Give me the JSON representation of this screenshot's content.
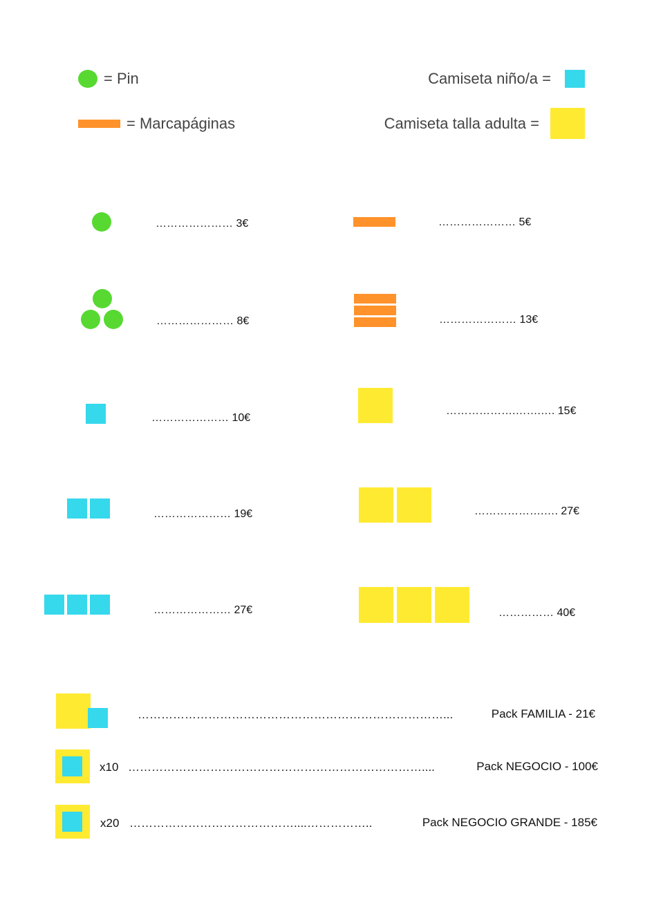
{
  "colors": {
    "pin": "#57d932",
    "bookmark": "#ff922b",
    "kid_shirt": "#36d8ec",
    "adult_shirt": "#ffea32"
  },
  "legend": {
    "pin": "=  Pin",
    "bookmark": "=  Marcapáginas",
    "kid_shirt": "Camiseta niño/a =",
    "adult_shirt": "Camiseta talla adulta ="
  },
  "prices": {
    "pin_1": "………………… 3€",
    "bookmark_1": "………………… 5€",
    "pin_3": "………………… 8€",
    "bookmark_3": "………………… 13€",
    "kid_1": "………………… 10€",
    "adult_1": "……………….…….…. 15€",
    "kid_2": "………………… 19€",
    "adult_2": "……………….…. 27€",
    "kid_3": "………………… 27€",
    "adult_3": "…………… 40€"
  },
  "packs": [
    {
      "quantity": "",
      "dots": "……………………………………………………………………...",
      "label": "Pack FAMILIA - 21€"
    },
    {
      "quantity": "x10",
      "dots": "…………………………………………………………………....",
      "label": "Pack NEGOCIO - 100€"
    },
    {
      "quantity": "x20",
      "dots": "……………………………………....……………..",
      "label": "Pack NEGOCIO GRANDE - 185€"
    }
  ]
}
